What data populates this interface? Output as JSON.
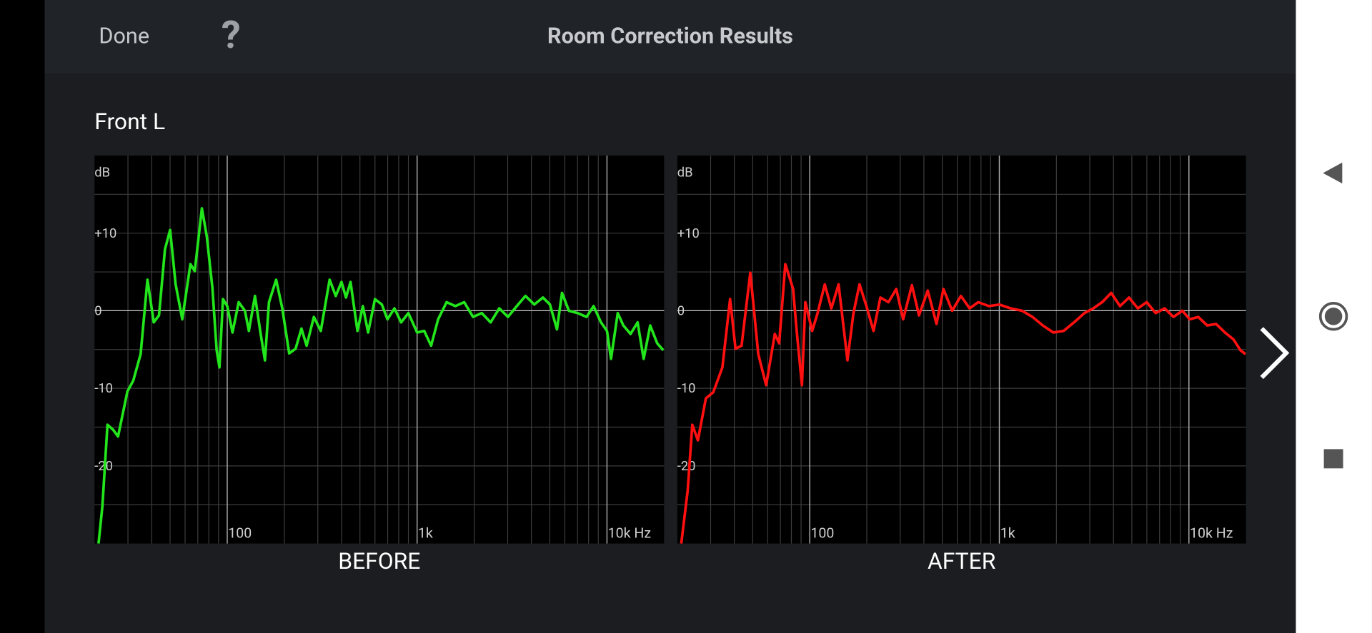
{
  "header": {
    "done": "Done",
    "help": "?",
    "title": "Room Correction Results"
  },
  "channel": "Front L",
  "chart_data": [
    {
      "type": "line",
      "label": "BEFORE",
      "ylabel": "dB",
      "xscale": "log",
      "xlim": [
        20,
        20000
      ],
      "ylim": [
        -30,
        20
      ],
      "xticks": [
        100,
        {
          "value": 1000,
          "label": "1k"
        },
        {
          "value": 10000,
          "label": "10k Hz"
        }
      ],
      "minor_xticks": [
        30,
        40,
        50,
        60,
        70,
        80,
        90,
        200,
        300,
        400,
        500,
        600,
        700,
        800,
        900,
        2000,
        3000,
        4000,
        5000,
        6000,
        7000,
        8000,
        9000
      ],
      "yticks": [
        -20,
        -10,
        0,
        {
          "value": 10,
          "label": "+10"
        }
      ],
      "ygrid": [
        -25,
        -15,
        -5,
        5,
        15
      ],
      "grid": true,
      "series": [
        {
          "color": "#22e51c",
          "x": [
            21,
            22,
            23.4,
            25,
            26.6,
            29.8,
            32,
            35,
            38,
            41,
            43.7,
            47,
            50,
            53.5,
            58,
            64,
            67.5,
            73.5,
            78,
            83.5,
            88,
            91,
            95,
            100,
            106.6,
            115,
            124,
            130,
            140,
            150,
            158,
            166,
            181,
            195,
            212,
            229,
            246,
            262,
            286,
            311,
            346,
            373,
            400,
            422,
            446,
            485,
            518,
            552,
            600,
            652,
            698,
            760,
            824,
            900,
            1000,
            1090,
            1185,
            1290,
            1430,
            1590,
            1770,
            1970,
            2190,
            2440,
            2710,
            3010,
            3350,
            3720,
            4140,
            4600,
            5010,
            5450,
            5800,
            6300,
            7000,
            7800,
            8500,
            9300,
            10000,
            10500,
            11400,
            12200,
            13300,
            14500,
            15600,
            16900,
            18400,
            19800
          ],
          "values": [
            -30,
            -25.2,
            -14.7,
            -15.3,
            -16.2,
            -10.4,
            -9,
            -5.6,
            4,
            -1.5,
            -0.6,
            7.9,
            10.4,
            3.4,
            -1.1,
            6,
            5.1,
            13.2,
            9.6,
            3,
            -5.1,
            -7.3,
            1.5,
            0.6,
            -2.8,
            1.1,
            0,
            -2.6,
            1.9,
            -3,
            -6.4,
            1.1,
            4,
            0.3,
            -5.5,
            -4.9,
            -2.3,
            -4.5,
            -0.8,
            -2.6,
            4,
            1.9,
            3.7,
            1.7,
            3.7,
            -2.6,
            0.6,
            -2.8,
            1.5,
            0.8,
            -1.1,
            0.3,
            -1.5,
            -0.3,
            -2.8,
            -2.6,
            -4.5,
            -1.1,
            1.1,
            0.6,
            1.1,
            -0.8,
            -0.3,
            -1.5,
            0.3,
            -0.8,
            0.6,
            1.9,
            0.8,
            1.7,
            0.8,
            -2.4,
            2.3,
            0,
            -0.3,
            -0.8,
            0.6,
            -1.5,
            -2.6,
            -6.2,
            -0.3,
            -1.9,
            -3,
            -1.5,
            -6.2,
            -1.9,
            -4.2,
            -5.1
          ]
        }
      ]
    },
    {
      "type": "line",
      "label": "AFTER",
      "ylabel": "dB",
      "xscale": "log",
      "xlim": [
        20,
        20000
      ],
      "ylim": [
        -30,
        20
      ],
      "xticks": [
        100,
        {
          "value": 1000,
          "label": "1k"
        },
        {
          "value": 10000,
          "label": "10k Hz"
        }
      ],
      "minor_xticks": [
        30,
        40,
        50,
        60,
        70,
        80,
        90,
        200,
        300,
        400,
        500,
        600,
        700,
        800,
        900,
        2000,
        3000,
        4000,
        5000,
        6000,
        7000,
        8000,
        9000
      ],
      "yticks": [
        -20,
        -10,
        0,
        {
          "value": 10,
          "label": "+10"
        }
      ],
      "ygrid": [
        -25,
        -15,
        -5,
        5,
        15
      ],
      "grid": true,
      "series": [
        {
          "color": "#ff1010",
          "x": [
            21,
            22.7,
            24,
            25.7,
            28.3,
            31,
            34.6,
            38,
            40.6,
            43.7,
            48.6,
            53.5,
            58.9,
            65.4,
            69,
            74.3,
            81.7,
            85.3,
            90.9,
            94.8,
            103,
            110,
            120,
            130,
            142,
            158,
            170,
            183,
            199,
            217,
            236,
            260,
            286,
            311,
            346,
            377,
            419,
            466,
            507,
            564,
            627,
            697,
            775,
            881,
            1000,
            1148,
            1318,
            1496,
            1697,
            1925,
            2183,
            2477,
            2809,
            3130,
            3490,
            3890,
            4330,
            4830,
            5380,
            5990,
            6670,
            7440,
            8290,
            9240,
            10100,
            11200,
            12500,
            13900,
            15500,
            17200,
            18700,
            19900
          ],
          "values": [
            -30,
            -23.2,
            -14.7,
            -16.7,
            -11.3,
            -10.5,
            -7.3,
            1.5,
            -4.9,
            -4.5,
            4.9,
            -5.6,
            -9.6,
            -3,
            -4.2,
            6,
            2.8,
            -2.6,
            -9.6,
            1.1,
            -2.6,
            -0.3,
            3.4,
            0.3,
            3.4,
            -6.4,
            -0.3,
            3.4,
            0.6,
            -2.6,
            1.7,
            1.1,
            2.8,
            -1.1,
            3.3,
            -0.6,
            2.6,
            -1.7,
            2.8,
            0,
            1.9,
            0.3,
            1.1,
            0.6,
            0.8,
            0.3,
            0,
            -0.8,
            -1.9,
            -2.8,
            -2.6,
            -1.5,
            -0.3,
            0.3,
            1.1,
            2.3,
            0.6,
            1.7,
            0.3,
            1.1,
            -0.3,
            0.3,
            -0.8,
            0,
            -1.1,
            -0.8,
            -1.9,
            -1.7,
            -2.8,
            -3.7,
            -5.1,
            -5.6
          ]
        }
      ]
    }
  ]
}
